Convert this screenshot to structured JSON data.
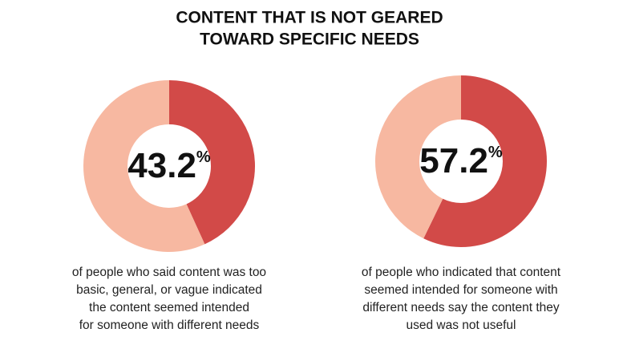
{
  "title_lines": [
    "CONTENT THAT IS NOT GEARED",
    "TOWARD SPECIFIC NEEDS"
  ],
  "chart_data": [
    {
      "type": "donut",
      "values": [
        43.2,
        56.8
      ],
      "colors": [
        "#d24a48",
        "#f7b8a1"
      ],
      "center_label": "43.2%",
      "caption_lines": [
        "of people who said content was too",
        "basic, general, or vague indicated",
        "the content seemed intended",
        "for someone with different needs"
      ]
    },
    {
      "type": "donut",
      "values": [
        57.2,
        42.8
      ],
      "colors": [
        "#d24a48",
        "#f7b8a1"
      ],
      "center_label": "57.2%",
      "caption_lines": [
        "of people who indicated that content",
        "seemed  intended for someone with",
        "different needs say the content they",
        "used was not useful"
      ]
    }
  ]
}
